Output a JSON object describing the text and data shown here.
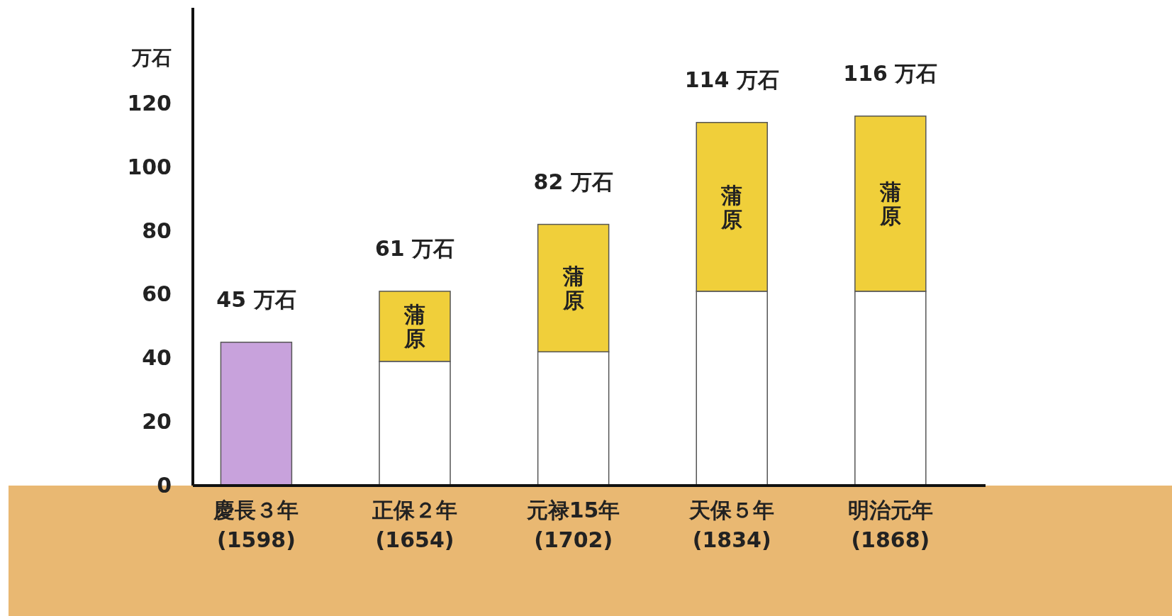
{
  "chart_data": {
    "type": "bar",
    "stacked": true,
    "ylabel": "万石",
    "categories": [
      "慶長３年\n(1598)",
      "正保２年\n(1654)",
      "元禄15年\n(1702)",
      "天保５年\n(1834)",
      "明治元年\n(1868)"
    ],
    "series": [
      {
        "colors": [
          "#c8a2dc",
          "#ffffff",
          "#ffffff",
          "#ffffff",
          "#ffffff"
        ],
        "values": [
          45,
          39,
          42,
          61,
          61
        ]
      },
      {
        "name": "蒲原",
        "color": "#f0cf3a",
        "values": [
          null,
          22,
          40,
          53,
          55
        ]
      }
    ],
    "totals": [
      "45 万石",
      "61 万石",
      "82 万石",
      "114 万石",
      "116 万石"
    ],
    "ylim": [
      0,
      150
    ],
    "yticks": [
      0,
      20,
      40,
      60,
      80,
      100,
      120
    ],
    "grid": false,
    "legend": false
  }
}
